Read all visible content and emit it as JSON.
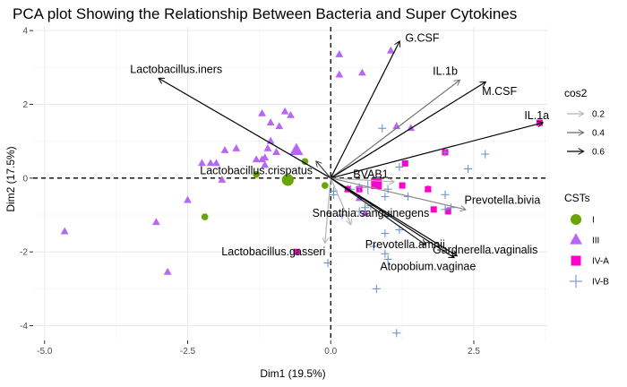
{
  "chart_data": {
    "type": "scatter",
    "title": "PCA plot Showing the Relationship Between Bacteria and Super Cytokines",
    "xlabel": "Dim1 (19.5%)",
    "ylabel": "Dim2 (17.5%)",
    "xlim": [
      -5.2,
      3.8
    ],
    "ylim": [
      -4.4,
      4.1
    ],
    "xticks": [
      -5.0,
      -2.5,
      0.0,
      2.5
    ],
    "xtick_labels": [
      "-5.0",
      "-2.5",
      "0.0",
      "2.5"
    ],
    "yticks": [
      -4,
      -2,
      0,
      2,
      4
    ],
    "ytick_labels": [
      "-4",
      "-2",
      "0",
      "2",
      "4"
    ],
    "grid": true,
    "legend_position": "right",
    "colors": {
      "I": "#6aa506",
      "III": "#b766f5",
      "IV-A": "#ff00cc",
      "IV-B": "#6f95cf"
    },
    "cos2_legend": {
      "title": "cos2",
      "entries": [
        {
          "label": "0.2",
          "color": "#b3b3b3"
        },
        {
          "label": "0.4",
          "color": "#6b6b6b"
        },
        {
          "label": "0.6",
          "color": "#000000"
        }
      ]
    },
    "cst_legend": {
      "title": "CSTs",
      "entries": [
        {
          "label": "I",
          "shape": "circle"
        },
        {
          "label": "III",
          "shape": "triangle"
        },
        {
          "label": "IV-A",
          "shape": "square"
        },
        {
          "label": "IV-B",
          "shape": "cross"
        }
      ]
    },
    "variables": [
      {
        "name": "G.CSF",
        "x": 1.2,
        "y": 3.7,
        "cos2": 0.6,
        "lx": 1.6,
        "ly": 3.8
      },
      {
        "name": "IL.1b",
        "x": 2.25,
        "y": 2.65,
        "cos2": 0.35,
        "lx": 2.0,
        "ly": 2.9
      },
      {
        "name": "M.CSF",
        "x": 2.7,
        "y": 2.6,
        "cos2": 0.6,
        "lx": 2.95,
        "ly": 2.35
      },
      {
        "name": "IL.1a",
        "x": 3.7,
        "y": 1.5,
        "cos2": 0.6,
        "lx": 3.6,
        "ly": 1.7
      },
      {
        "name": "Lactobacillus.iners",
        "x": -3.0,
        "y": 2.7,
        "cos2": 0.6,
        "lx": -2.7,
        "ly": 2.95
      },
      {
        "name": "Lactobacillus.crispatus",
        "x": -0.25,
        "y": 0.45,
        "cos2": 0.45,
        "lx": -1.3,
        "ly": 0.2
      },
      {
        "name": "BVAB1",
        "x": 1.1,
        "y": -0.1,
        "cos2": 0.2,
        "lx": 0.7,
        "ly": 0.1
      },
      {
        "name": "Prevotella.bivia",
        "x": 2.35,
        "y": -0.85,
        "cos2": 0.3,
        "lx": 3.0,
        "ly": -0.6
      },
      {
        "name": "Sneathia.sanguinegens",
        "x": 0.35,
        "y": -1.25,
        "cos2": 0.2,
        "lx": 0.7,
        "ly": -0.95
      },
      {
        "name": "Prevotella.amnii",
        "x": 1.65,
        "y": -1.8,
        "cos2": 0.55,
        "lx": 1.3,
        "ly": -1.8
      },
      {
        "name": "Gardnerella.vaginalis",
        "x": 2.2,
        "y": -2.1,
        "cos2": 0.6,
        "lx": 2.7,
        "ly": -1.95
      },
      {
        "name": "Lactobacillus.gasseri",
        "x": -0.1,
        "y": -1.75,
        "cos2": 0.2,
        "lx": -1.0,
        "ly": -2.0
      },
      {
        "name": "Atopobium.vaginae",
        "x": 2.15,
        "y": -2.15,
        "cos2": 0.6,
        "lx": 1.7,
        "ly": -2.4
      }
    ],
    "individuals": {
      "I": [
        [
          -2.2,
          -1.05
        ],
        [
          -0.45,
          0.45
        ],
        [
          -1.3,
          0.1
        ],
        [
          -0.1,
          -0.2
        ]
      ],
      "III": [
        [
          -4.65,
          -1.45
        ],
        [
          -3.05,
          -1.2
        ],
        [
          -2.85,
          -2.55
        ],
        [
          -2.5,
          -0.6
        ],
        [
          -1.9,
          -0.05
        ],
        [
          -2.0,
          0.4
        ],
        [
          -2.1,
          0.4
        ],
        [
          -1.2,
          0.5
        ],
        [
          -1.1,
          0.8
        ],
        [
          -1.05,
          1.0
        ],
        [
          -1.2,
          1.75
        ],
        [
          -1.15,
          0.55
        ],
        [
          -0.95,
          0.7
        ],
        [
          -0.8,
          1.8
        ],
        [
          -0.7,
          1.7
        ],
        [
          -1.05,
          1.5
        ],
        [
          -0.9,
          1.4
        ],
        [
          -1.65,
          0.8
        ],
        [
          -1.15,
          0.35
        ],
        [
          0.15,
          3.35
        ],
        [
          0.15,
          2.8
        ],
        [
          1.05,
          3.45
        ],
        [
          1.4,
          1.35
        ],
        [
          1.15,
          1.4
        ],
        [
          0.55,
          2.85
        ],
        [
          0.3,
          -0.3
        ],
        [
          0.6,
          -0.95
        ],
        [
          1.7,
          -0.3
        ],
        [
          0.5,
          -0.55
        ],
        [
          -1.3,
          0.5
        ],
        [
          -1.85,
          0.75
        ],
        [
          -2.25,
          0.4
        ]
      ],
      "IV-A": [
        [
          1.25,
          -0.2
        ],
        [
          3.65,
          1.5
        ],
        [
          1.3,
          0.4
        ],
        [
          2.0,
          0.7
        ],
        [
          0.3,
          -0.3
        ],
        [
          0.5,
          -0.3
        ],
        [
          1.8,
          -0.85
        ],
        [
          2.05,
          -0.9
        ],
        [
          -0.6,
          -2.0
        ],
        [
          1.7,
          -0.3
        ]
      ],
      "IV-B": [
        [
          0.7,
          -0.75
        ],
        [
          0.95,
          -0.5
        ],
        [
          0.5,
          -0.25
        ],
        [
          1.0,
          -1.0
        ],
        [
          1.35,
          -0.5
        ],
        [
          0.6,
          -0.8
        ],
        [
          0.05,
          -0.35
        ],
        [
          2.0,
          -0.45
        ],
        [
          2.4,
          0.25
        ],
        [
          2.7,
          0.65
        ],
        [
          2.0,
          0.7
        ],
        [
          1.2,
          -1.4
        ],
        [
          0.95,
          -1.5
        ],
        [
          1.0,
          -2.2
        ],
        [
          0.8,
          -3.0
        ],
        [
          1.15,
          -4.2
        ],
        [
          -0.05,
          -2.3
        ],
        [
          0.75,
          -1.85
        ],
        [
          0.9,
          1.35
        ],
        [
          0.95,
          -2.05
        ],
        [
          2.0,
          -0.85
        ],
        [
          2.1,
          -0.8
        ],
        [
          0.5,
          -0.9
        ],
        [
          0.2,
          -1.0
        ],
        [
          1.0,
          -0.3
        ],
        [
          1.2,
          0.3
        ],
        [
          0.05,
          -0.45
        ],
        [
          0.35,
          -0.3
        ]
      ]
    },
    "centroids": {
      "I": [
        -0.75,
        -0.05
      ],
      "III": [
        -0.6,
        0.75
      ],
      "IV-A": [
        0.8,
        -0.15
      ],
      "IV-B": [
        0.65,
        -0.25
      ]
    }
  }
}
